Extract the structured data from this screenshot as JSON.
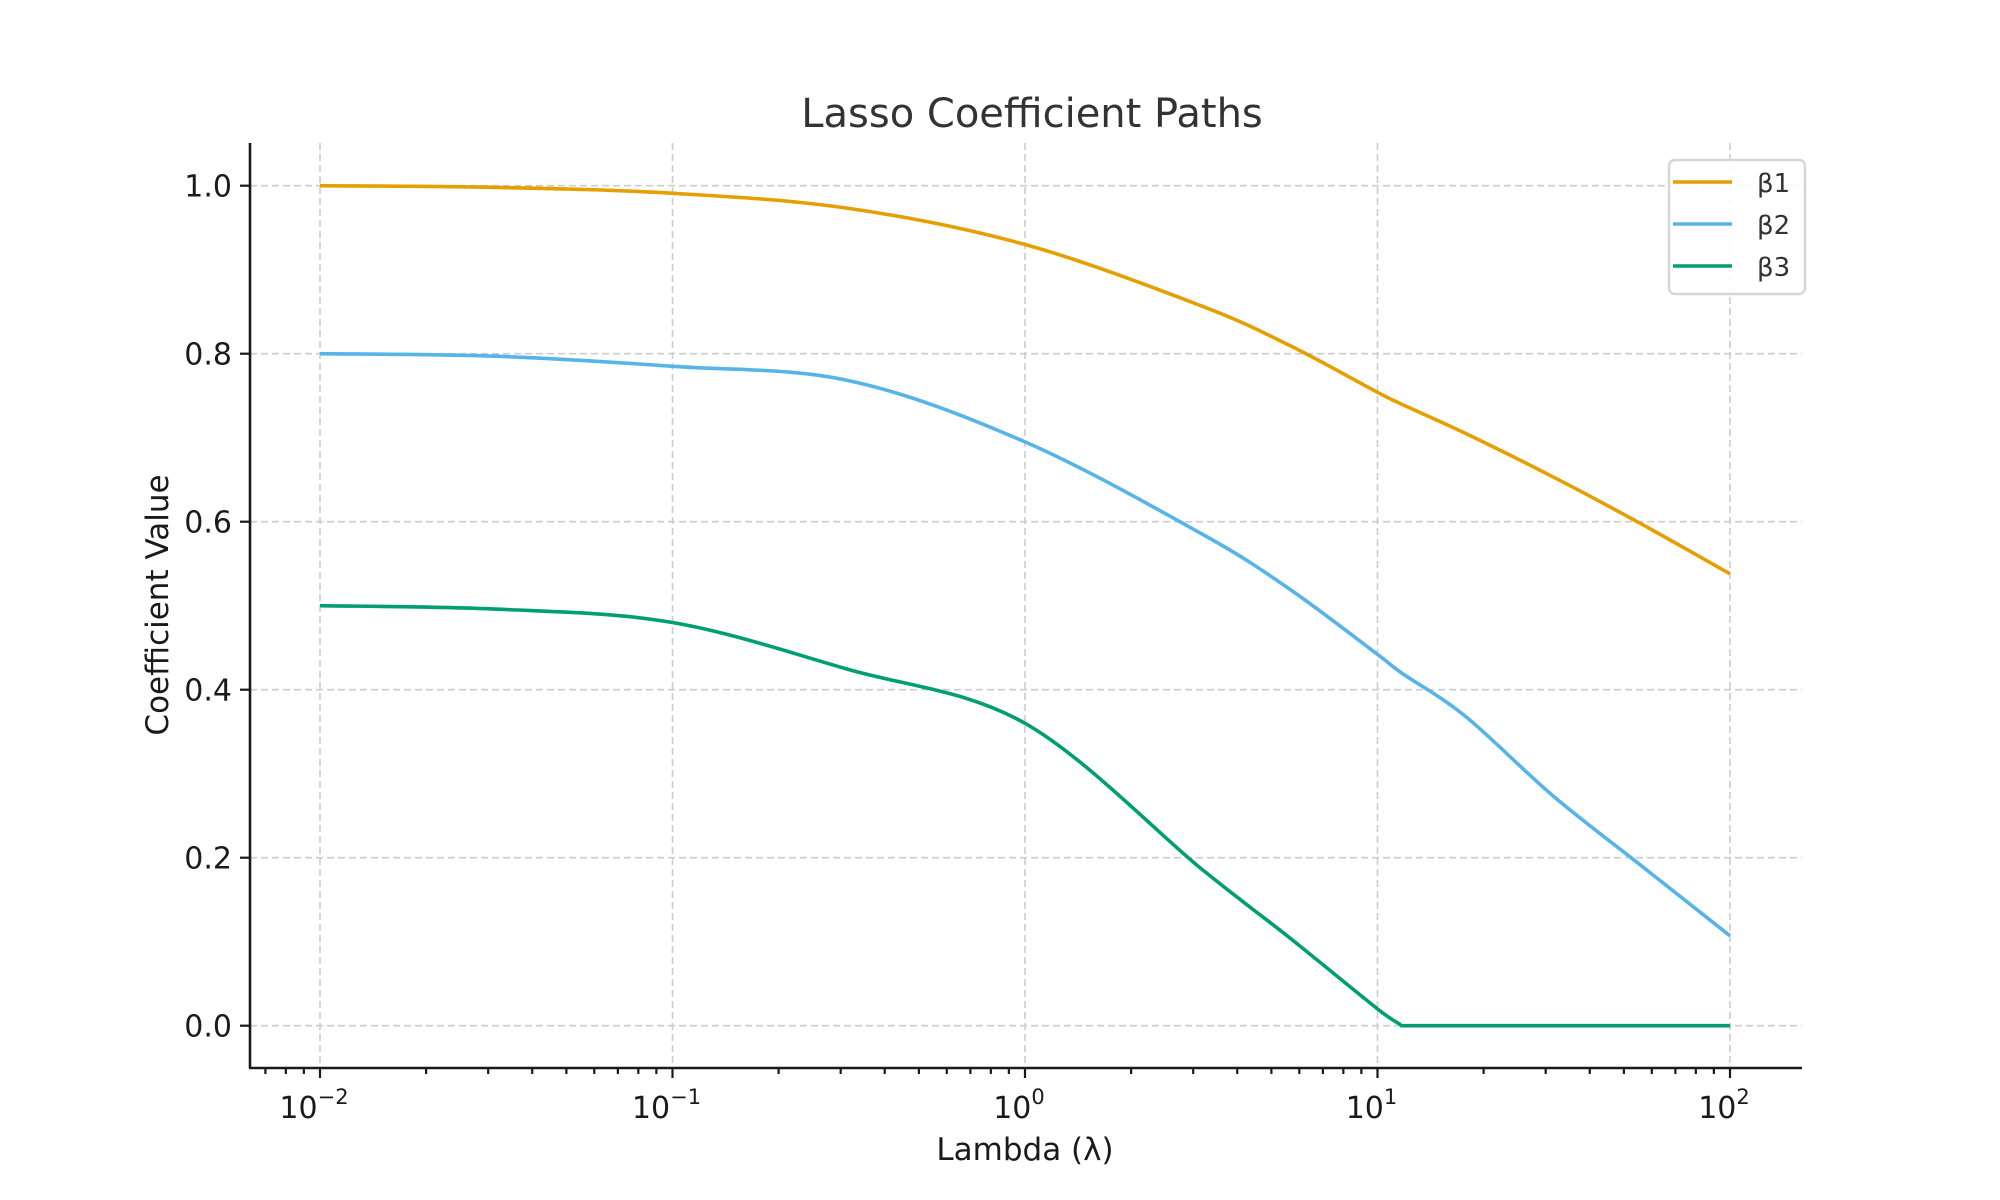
{
  "chart_data": {
    "type": "line",
    "title": "Lasso Coefficient Paths",
    "xlabel": "Lambda (λ)",
    "ylabel": "Coefficient Value",
    "xscale": "log",
    "xlim": [
      0.0063,
      160
    ],
    "ylim": [
      -0.05,
      1.05
    ],
    "grid": true,
    "legend_position": "upper right",
    "x_ticks": [
      {
        "value": 0.01,
        "base": "10",
        "exp": "−2"
      },
      {
        "value": 0.1,
        "base": "10",
        "exp": "−1"
      },
      {
        "value": 1,
        "base": "10",
        "exp": "0"
      },
      {
        "value": 10,
        "base": "10",
        "exp": "1"
      },
      {
        "value": 100,
        "base": "10",
        "exp": "2"
      }
    ],
    "y_ticks": [
      "0.0",
      "0.2",
      "0.4",
      "0.6",
      "0.8",
      "1.0"
    ],
    "x": [
      0.01,
      0.0316,
      0.1,
      0.316,
      1,
      3.16,
      5.62,
      10,
      11.7,
      17.8,
      31.6,
      56.2,
      100
    ],
    "series": [
      {
        "name": "β1",
        "color": "#E69F00",
        "values": [
          1.0,
          0.998,
          0.991,
          0.973,
          0.93,
          0.857,
          0.81,
          0.754,
          0.74,
          0.705,
          0.653,
          0.597,
          0.538
        ]
      },
      {
        "name": "β2",
        "color": "#56B4E9",
        "values": [
          0.8,
          0.797,
          0.785,
          0.768,
          0.695,
          0.586,
          0.52,
          0.442,
          0.42,
          0.368,
          0.273,
          0.19,
          0.107
        ]
      },
      {
        "name": "β3",
        "color": "#009E73",
        "values": [
          0.5,
          0.496,
          0.48,
          0.424,
          0.36,
          0.187,
          0.105,
          0.02,
          0.0,
          0.0,
          0.0,
          0.0,
          0.0
        ]
      }
    ]
  },
  "legend": {
    "items": [
      {
        "label": "β1",
        "color": "#E69F00"
      },
      {
        "label": "β2",
        "color": "#56B4E9"
      },
      {
        "label": "β3",
        "color": "#009E73"
      }
    ]
  }
}
